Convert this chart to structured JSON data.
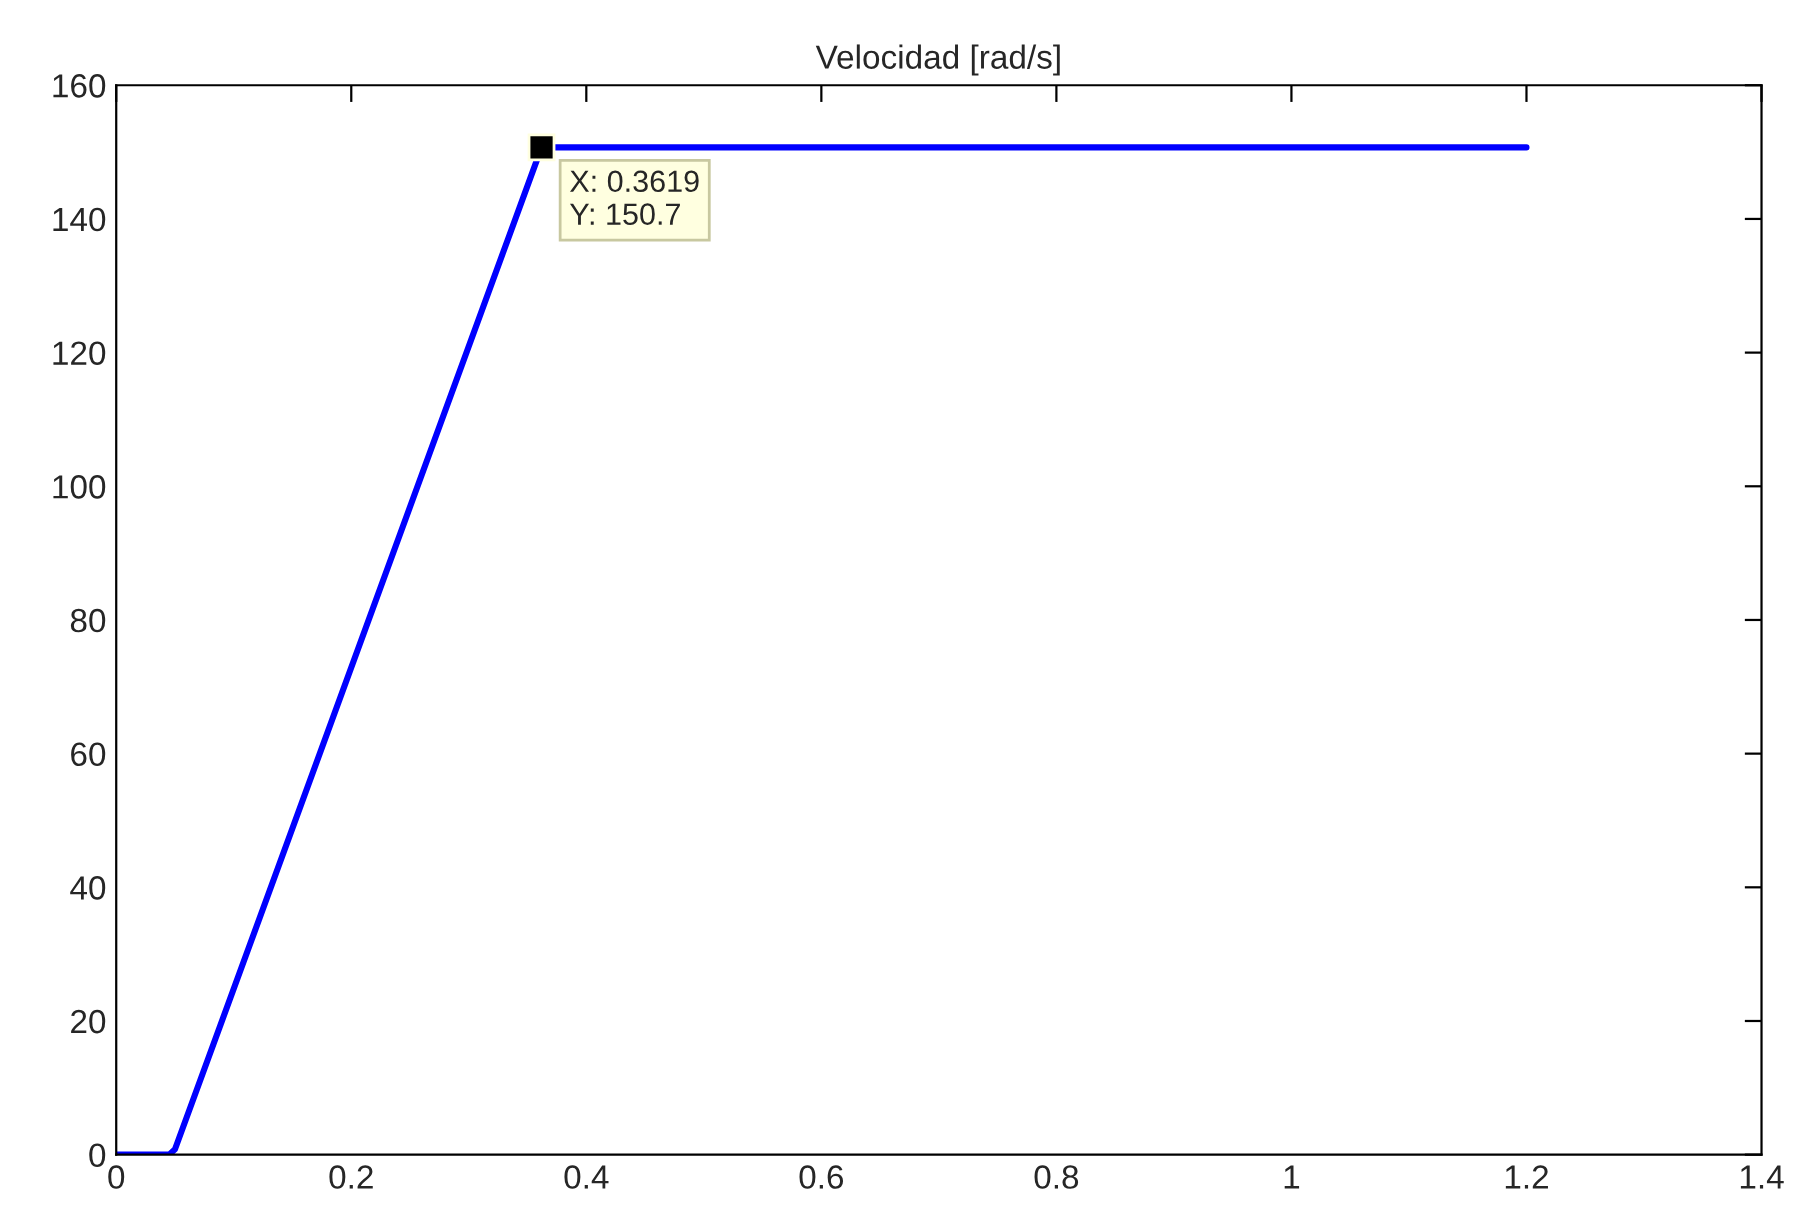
{
  "chart_data": {
    "type": "line",
    "title": "Velocidad [rad/s]",
    "x": [
      0,
      0.045,
      0.05,
      0.3619,
      0.37,
      1.2
    ],
    "series": [
      {
        "color": "#0000ff",
        "values": [
          0,
          0,
          0.8,
          150.7,
          150.7,
          150.7
        ]
      }
    ],
    "xlim": [
      0,
      1.4
    ],
    "xticks": [
      0,
      0.2,
      0.4,
      0.6,
      0.8,
      1,
      1.2,
      1.4
    ],
    "ylim": [
      0,
      160
    ],
    "yticks": [
      0,
      20,
      40,
      60,
      80,
      100,
      120,
      140,
      160
    ],
    "annotations": [
      {
        "text": "X: 0.3619\nY: 150.7",
        "x": 0.3619,
        "y": 150.7
      }
    ],
    "grid": false,
    "legend": false
  }
}
